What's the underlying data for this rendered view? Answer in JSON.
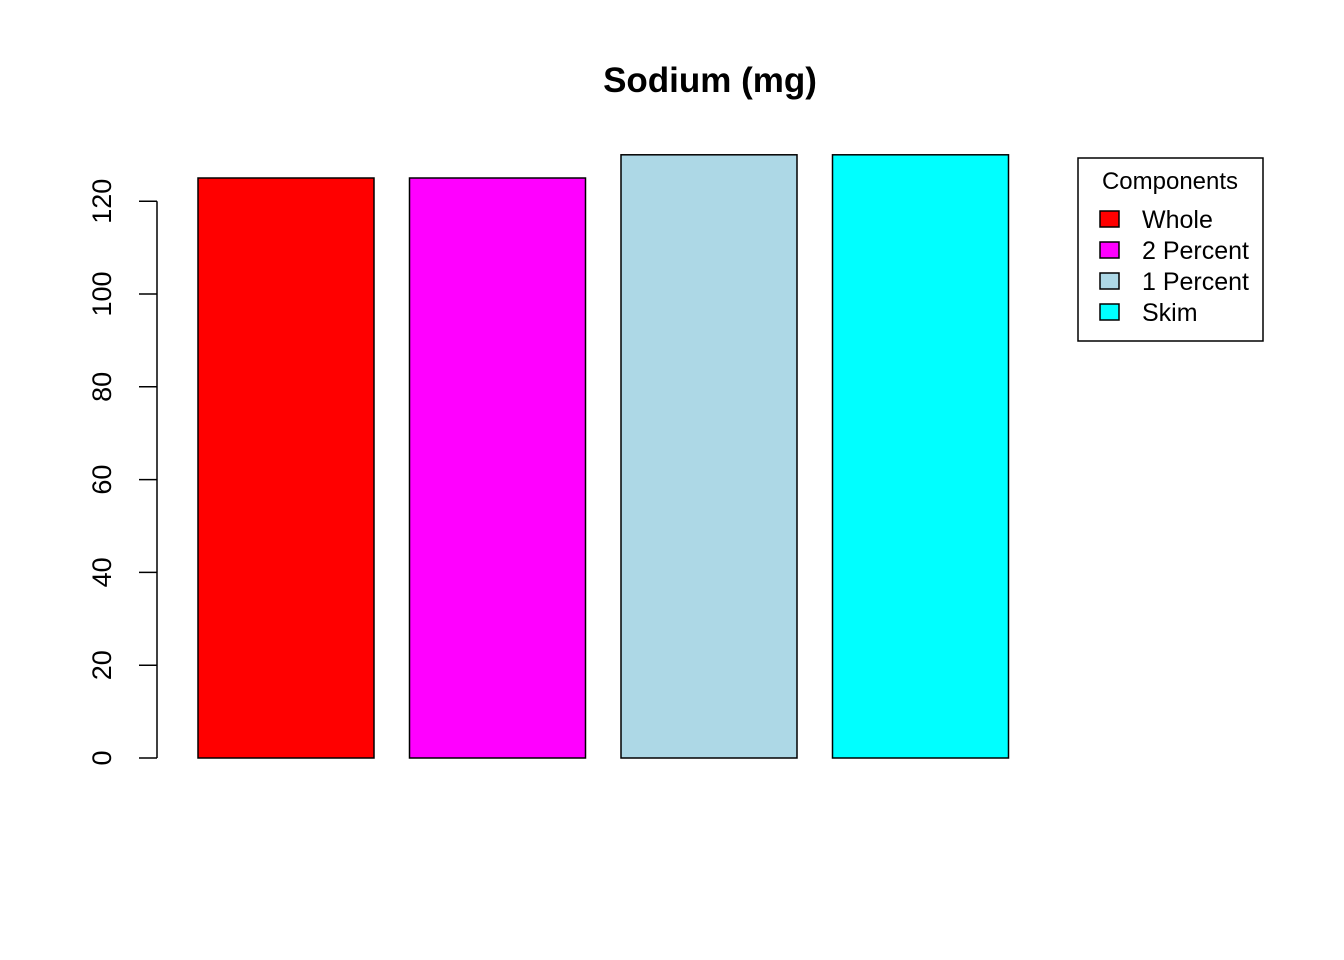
{
  "chart_data": {
    "type": "bar",
    "title": "Sodium (mg)",
    "xlabel": "",
    "ylabel": "",
    "categories": [
      "Whole",
      "2 Percent",
      "1 Percent",
      "Skim"
    ],
    "values": [
      125,
      125,
      130,
      130
    ],
    "colors": [
      "#ff0000",
      "#ff00ff",
      "#add8e6",
      "#00ffff"
    ],
    "ylim": [
      0,
      130
    ],
    "yticks": [
      0,
      20,
      40,
      60,
      80,
      100,
      120
    ],
    "grid": false,
    "legend": {
      "title": "Components",
      "position": "top-right",
      "entries": [
        "Whole",
        "2 Percent",
        "1 Percent",
        "Skim"
      ]
    }
  }
}
